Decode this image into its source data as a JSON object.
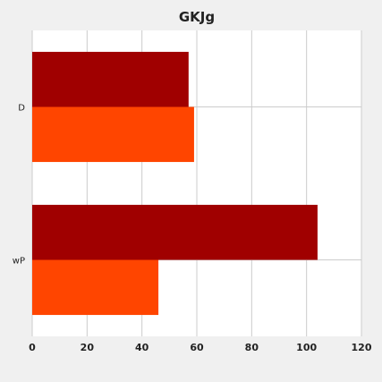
{
  "chart_data": {
    "type": "bar",
    "orientation": "horizontal",
    "title": "GKJg",
    "xlabel": "",
    "ylabel": "",
    "categories": [
      "D",
      "wP"
    ],
    "series": [
      {
        "values": [
          57,
          104
        ],
        "color": "#a00000"
      },
      {
        "values": [
          59,
          46
        ],
        "color": "#ff4500"
      }
    ],
    "xlim": [
      0,
      120
    ],
    "xticks": [
      "0",
      "20",
      "40",
      "60",
      "80",
      "100",
      "120"
    ],
    "grid": true,
    "legend": "none",
    "background": "#f0f0f0",
    "plot_background": "#ffffff",
    "grid_color": "#cccccc"
  }
}
